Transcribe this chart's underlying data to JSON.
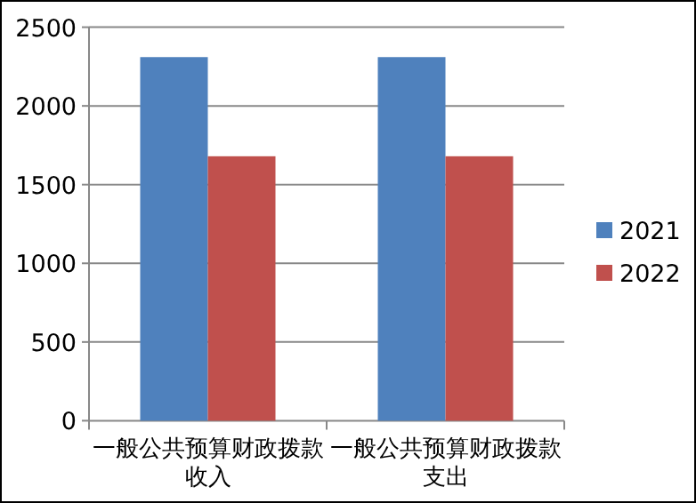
{
  "chart_data": {
    "type": "bar",
    "categories": [
      "一般公共预算财政拨款收入",
      "一般公共预算财政拨款支出"
    ],
    "series": [
      {
        "name": "2021",
        "color": "#4f81bd",
        "values": [
          2310,
          2310
        ]
      },
      {
        "name": "2022",
        "color": "#c0504d",
        "values": [
          1680,
          1680
        ]
      }
    ],
    "ylim": [
      0,
      2500
    ],
    "yticks": [
      0,
      500,
      1000,
      1500,
      2000,
      2500
    ],
    "grid": "y",
    "legend": "right"
  }
}
